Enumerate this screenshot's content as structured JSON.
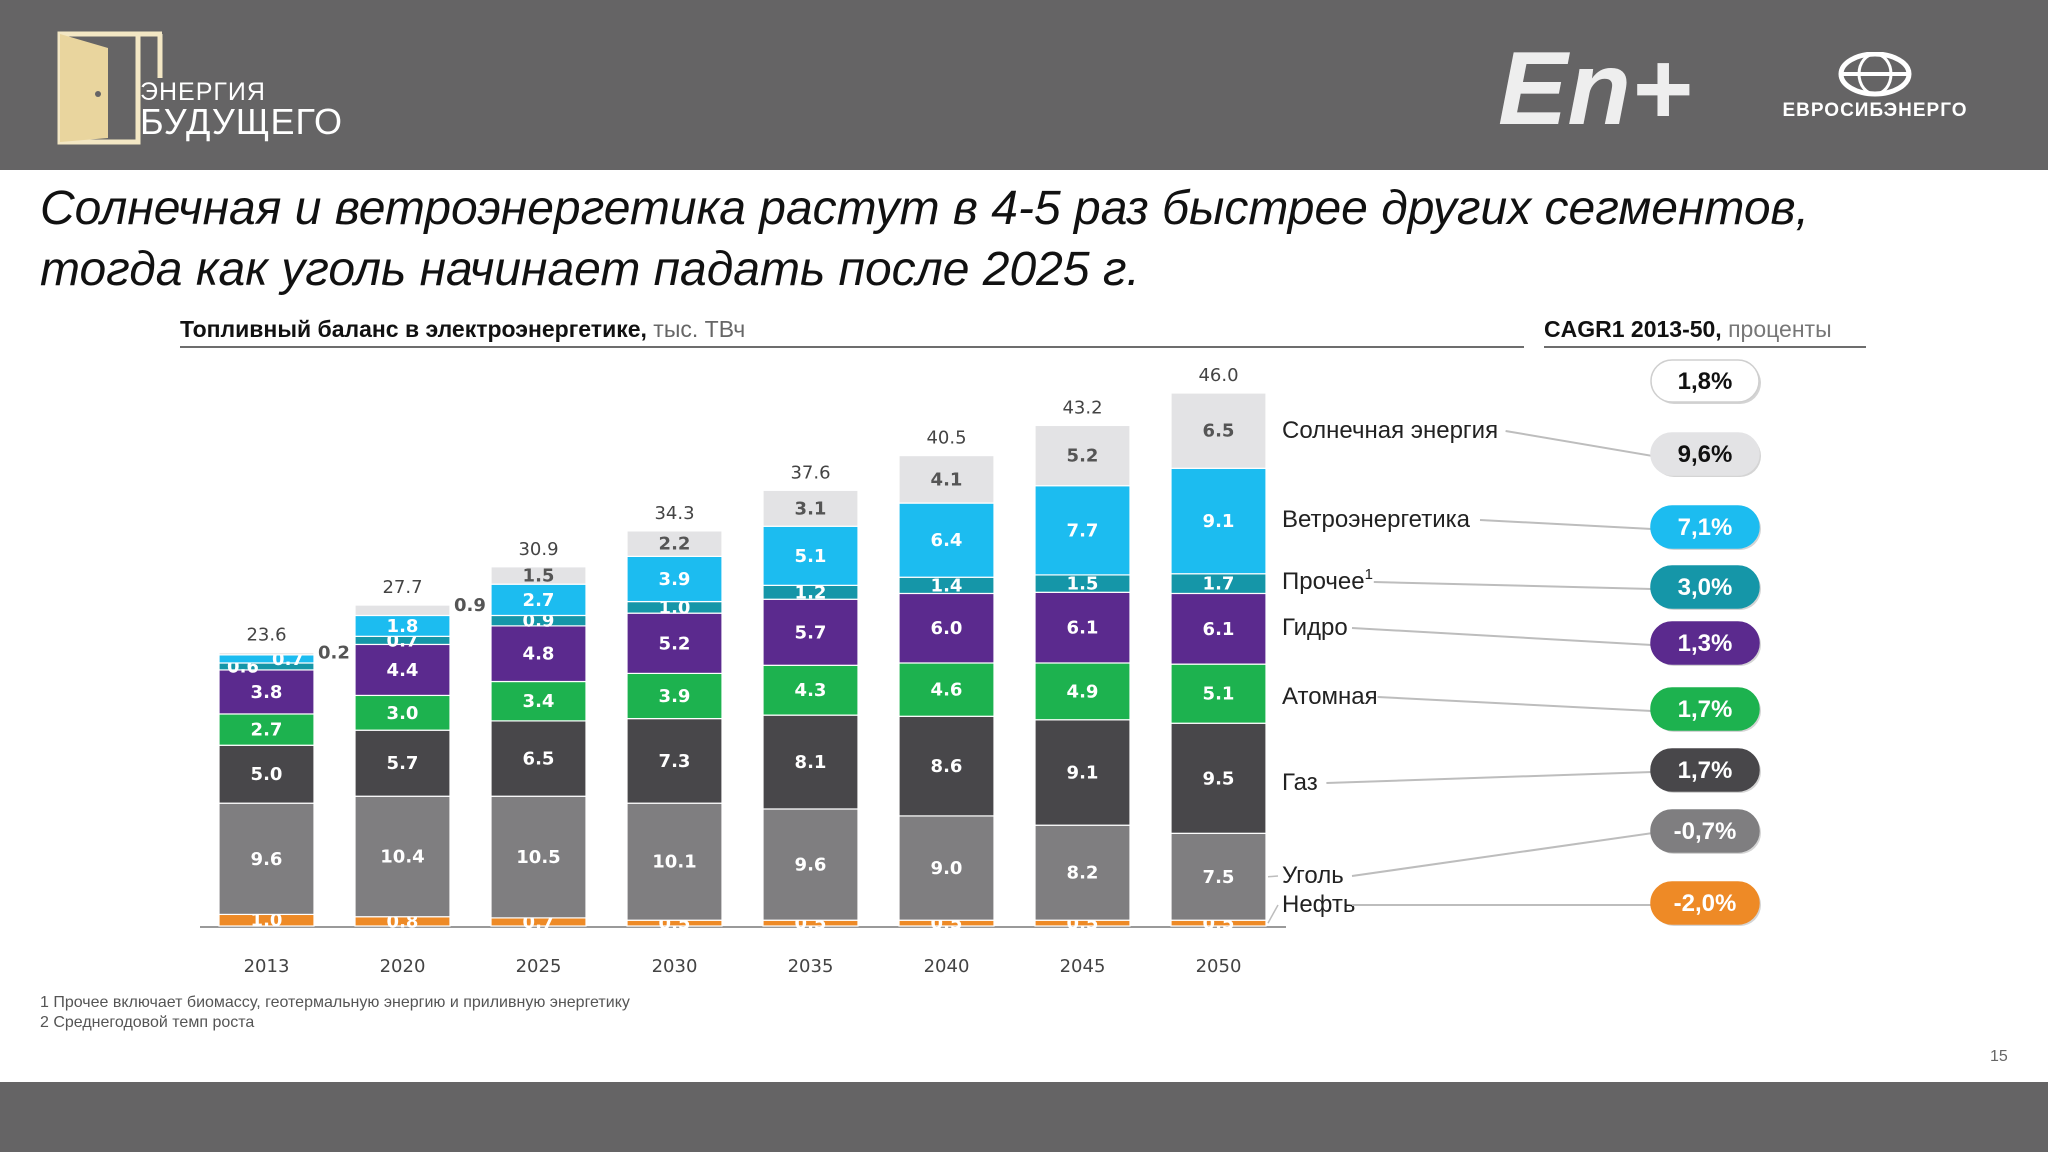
{
  "header": {
    "logo_left_line1": "ЭНЕРГИЯ",
    "logo_left_line2": "БУДУЩЕГО",
    "logo_center": "En+",
    "logo_right": "ЕВРОСИБЭНЕРГО"
  },
  "headline": {
    "line1": "Солнечная и ветроэнергетика растут в 4-5 раз быстрее других сегментов,",
    "line2": "тогда как уголь начинает падать после 2025 г."
  },
  "chart_title": {
    "bold": "Топливный баланс в электроэнергетике,",
    "unit": " тыс. ТВч"
  },
  "cagr_title": {
    "bold": "CAGR1 2013-50,",
    "unit": " проценты"
  },
  "footnotes": [
    "1 Прочее включает биомассу, геотермальную энергию и приливную энергетику",
    "2 Среднегодовой темп роста"
  ],
  "page_number": "15",
  "chart_data": {
    "type": "bar",
    "stacked": true,
    "categories": [
      "2013",
      "2020",
      "2025",
      "2030",
      "2035",
      "2040",
      "2045",
      "2050"
    ],
    "totals": [
      "23.6",
      "27.7",
      "30.9",
      "34.3",
      "37.6",
      "40.5",
      "43.2",
      "46.0"
    ],
    "series": [
      {
        "name": "Нефть",
        "color": "#ee8a26",
        "values": [
          1.0,
          0.8,
          0.7,
          0.5,
          0.5,
          0.5,
          0.5,
          0.5
        ],
        "labels": [
          "1.0",
          "0.8",
          "0.7",
          "0.5",
          "0.5",
          "0.5",
          "0.5",
          "0.5"
        ]
      },
      {
        "name": "Уголь",
        "color": "#7f7e80",
        "values": [
          9.6,
          10.4,
          10.5,
          10.1,
          9.6,
          9.0,
          8.2,
          7.5
        ],
        "labels": [
          "9.6",
          "10.4",
          "10.5",
          "10.1",
          "9.6",
          "9.0",
          "8.2",
          "7.5"
        ]
      },
      {
        "name": "Газ",
        "color": "#48474a",
        "values": [
          5.0,
          5.7,
          6.5,
          7.3,
          8.1,
          8.6,
          9.1,
          9.5
        ],
        "labels": [
          "5.0",
          "5.7",
          "6.5",
          "7.3",
          "8.1",
          "8.6",
          "9.1",
          "9.5"
        ]
      },
      {
        "name": "Атомная",
        "color": "#1db24f",
        "values": [
          2.7,
          3.0,
          3.4,
          3.9,
          4.3,
          4.6,
          4.9,
          5.1
        ],
        "labels": [
          "2.7",
          "3.0",
          "3.4",
          "3.9",
          "4.3",
          "4.6",
          "4.9",
          "5.1"
        ]
      },
      {
        "name": "Гидро",
        "color": "#5b2a8e",
        "values": [
          3.8,
          4.4,
          4.8,
          5.2,
          5.7,
          6.0,
          6.1,
          6.1
        ],
        "labels": [
          "3.8",
          "4.4",
          "4.8",
          "5.2",
          "5.7",
          "6.0",
          "6.1",
          "6.1"
        ]
      },
      {
        "name": "Прочее",
        "color": "#1596a8",
        "values": [
          0.6,
          0.7,
          0.9,
          1.0,
          1.2,
          1.4,
          1.5,
          1.7
        ],
        "labels": [
          "0.6",
          "0.7",
          "0.9",
          "1.0",
          "1.2",
          "1.4",
          "1.5",
          "1.7"
        ]
      },
      {
        "name": "Ветроэнергетика",
        "color": "#1cbcf0",
        "values": [
          0.7,
          1.8,
          2.7,
          3.9,
          5.1,
          6.4,
          7.7,
          9.1
        ],
        "labels": [
          "0.7",
          "1.8",
          "2.7",
          "3.9",
          "5.1",
          "6.4",
          "7.7",
          "9.1"
        ]
      },
      {
        "name": "Солнечная энергия",
        "color": "#e3e3e5",
        "values": [
          0.2,
          0.9,
          1.5,
          2.2,
          3.1,
          4.1,
          5.2,
          6.5
        ],
        "labels": [
          "0.2",
          "0.9",
          "1.5",
          "2.2",
          "3.1",
          "4.1",
          "5.2",
          "6.5"
        ]
      }
    ],
    "ylim": [
      0,
      46
    ],
    "grid": false,
    "legend": [
      {
        "label": "Солнечная энергия",
        "sup": ""
      },
      {
        "label": "Ветроэнергетика",
        "sup": ""
      },
      {
        "label": "Прочее",
        "sup": "1"
      },
      {
        "label": "Гидро",
        "sup": ""
      },
      {
        "label": "Атомная",
        "sup": ""
      },
      {
        "label": "Газ",
        "sup": ""
      },
      {
        "label": "Уголь",
        "sup": ""
      },
      {
        "label": "Нефть",
        "sup": ""
      }
    ],
    "cagr": [
      {
        "text": "1,8%",
        "color": "#ffffff",
        "text_color": "#111111"
      },
      {
        "text": "9,6%",
        "color": "#e3e3e5",
        "text_color": "#111111"
      },
      {
        "text": "7,1%",
        "color": "#1cbcf0",
        "text_color": "#ffffff"
      },
      {
        "text": "3,0%",
        "color": "#1596a8",
        "text_color": "#ffffff"
      },
      {
        "text": "1,3%",
        "color": "#5b2a8e",
        "text_color": "#ffffff"
      },
      {
        "text": "1,7%",
        "color": "#1db24f",
        "text_color": "#ffffff"
      },
      {
        "text": "1,7%",
        "color": "#48474a",
        "text_color": "#ffffff"
      },
      {
        "text": "-0,7%",
        "color": "#7f7e80",
        "text_color": "#ffffff"
      },
      {
        "text": "-2,0%",
        "color": "#ee8a26",
        "text_color": "#ffffff"
      }
    ]
  }
}
